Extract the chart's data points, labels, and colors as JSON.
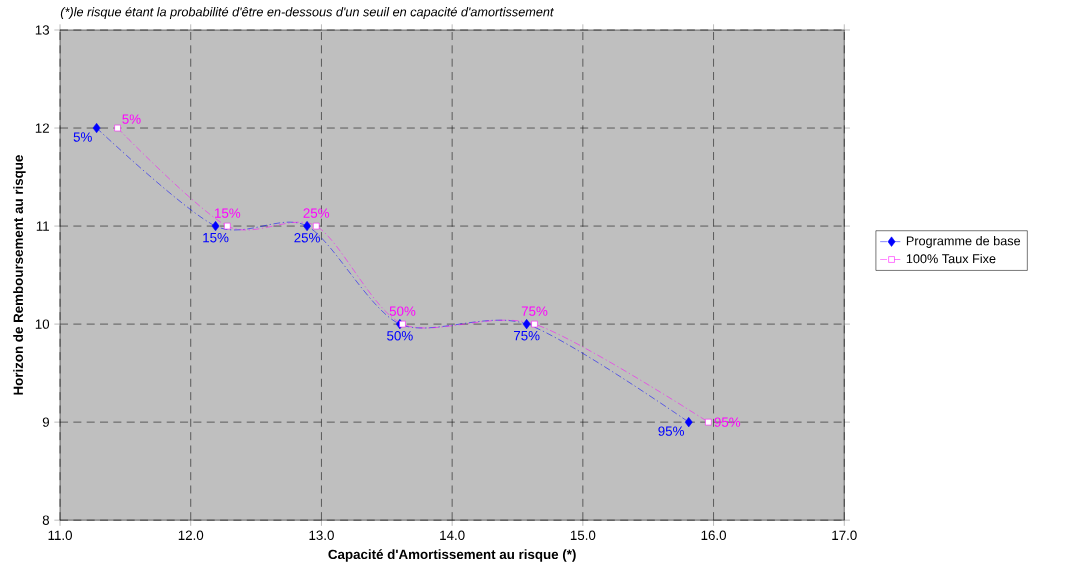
{
  "chart_data": {
    "type": "line",
    "title": "(*)le risque étant la probabilité d'être en-dessous d'un seuil en capacité d'amortissement",
    "xlabel": "Capacité d'Amortissement au risque (*)",
    "ylabel": "Horizon de Remboursement au risque",
    "xlim": [
      11,
      17
    ],
    "xticks": [
      {
        "value": 11,
        "label": "11.0"
      },
      {
        "value": 12,
        "label": "12.0"
      },
      {
        "value": 13,
        "label": "13.0"
      },
      {
        "value": 14,
        "label": "14.0"
      },
      {
        "value": 15,
        "label": "15.0"
      },
      {
        "value": 16,
        "label": "16.0"
      },
      {
        "value": 17,
        "label": "17.0"
      }
    ],
    "ylim": [
      8,
      13
    ],
    "yticks": [
      8,
      9,
      10,
      11,
      12,
      13
    ],
    "grid": true,
    "legend": "right",
    "line_style": "dashed",
    "series": [
      {
        "name": "Programme de base",
        "color": "#0000ff",
        "marker": "diamond",
        "x": [
          11.28,
          12.19,
          12.89,
          13.6,
          14.57,
          15.81
        ],
        "values": [
          12,
          11,
          11,
          10,
          10,
          9
        ]
      },
      {
        "name": "100% Taux Fixe",
        "color": "#ff00ff",
        "marker": "square",
        "x": [
          11.44,
          12.28,
          12.96,
          13.62,
          14.63,
          15.96
        ],
        "values": [
          12,
          11,
          11,
          10,
          10,
          9
        ]
      }
    ],
    "annotations": [
      {
        "text": "5%",
        "x": 11.28,
        "y": 12
      },
      {
        "text": "15%",
        "x": 12.19,
        "y": 11
      },
      {
        "text": "25%",
        "x": 12.89,
        "y": 11
      },
      {
        "text": "50%",
        "x": 13.6,
        "y": 10
      },
      {
        "text": "75%",
        "x": 14.57,
        "y": 10
      },
      {
        "text": "95%",
        "x": 15.81,
        "y": 9
      },
      {
        "text": "5%",
        "x": 11.44,
        "y": 12
      },
      {
        "text": "15%",
        "x": 12.28,
        "y": 11
      },
      {
        "text": "25%",
        "x": 12.96,
        "y": 11
      },
      {
        "text": "50%",
        "x": 13.62,
        "y": 10
      },
      {
        "text": "75%",
        "x": 14.63,
        "y": 10
      },
      {
        "text": "95%",
        "x": 15.96,
        "y": 9
      }
    ]
  }
}
